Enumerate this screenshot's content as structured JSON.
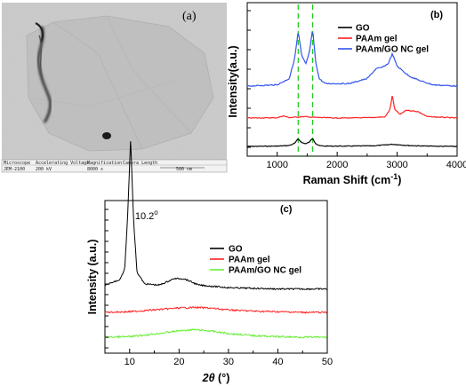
{
  "tem_panel": {
    "label": "(a)",
    "info_headers": [
      "Microscope",
      "Accelerating Voltage",
      "Magnification",
      "Camera Length"
    ],
    "info_values": [
      "JEM-2100",
      "200 kV",
      "8000 x",
      ""
    ],
    "scale_bar_label": "500 nm"
  },
  "chart_data": [
    {
      "type": "line",
      "panel_label": "(b)",
      "xlabel": "Raman Shift (cm",
      "xlabel_sup": "-1",
      "xlabel_close": ")",
      "ylabel": "Intensity(a.u.)",
      "xlim": [
        500,
        4000
      ],
      "xticks": [
        1000,
        2000,
        3000,
        4000
      ],
      "y_tick_labels": "none",
      "reference_lines_x": [
        1350,
        1590
      ],
      "reference_line_color": "#22cc22",
      "legend": "top-right",
      "series": [
        {
          "name": "GO",
          "color": "#000000",
          "x": [
            500,
            1000,
            1200,
            1290,
            1350,
            1410,
            1480,
            1540,
            1590,
            1640,
            1700,
            1800,
            2200,
            2600,
            2800,
            2920,
            3000,
            3200,
            3500,
            4000
          ],
          "y": [
            0.0,
            0.02,
            0.06,
            0.2,
            0.5,
            0.25,
            0.18,
            0.3,
            0.55,
            0.2,
            0.05,
            0.02,
            0.02,
            0.04,
            0.1,
            0.14,
            0.12,
            0.06,
            0.02,
            0.0
          ]
        },
        {
          "name": "PAAm gel",
          "color": "#ff2222",
          "x": [
            500,
            1000,
            1100,
            1200,
            1450,
            1600,
            2000,
            2500,
            2800,
            2880,
            2920,
            2960,
            3050,
            3150,
            3250,
            3350,
            3500,
            4000
          ],
          "y": [
            0.0,
            0.02,
            0.15,
            0.03,
            0.1,
            0.05,
            0.0,
            0.02,
            0.08,
            0.6,
            1.6,
            0.6,
            0.25,
            0.55,
            0.5,
            0.45,
            0.1,
            0.0
          ]
        },
        {
          "name": "PAAm/GO NC gel",
          "color": "#3355ee",
          "x": [
            500,
            1000,
            1200,
            1290,
            1350,
            1410,
            1480,
            1540,
            1590,
            1640,
            1700,
            1800,
            2200,
            2500,
            2650,
            2750,
            2850,
            2920,
            3000,
            3200,
            3400,
            3600,
            4000
          ],
          "y": [
            0.0,
            0.05,
            0.3,
            1.1,
            2.2,
            1.2,
            0.9,
            1.4,
            2.3,
            1.0,
            0.3,
            0.1,
            0.1,
            0.3,
            0.7,
            0.75,
            0.9,
            1.3,
            0.8,
            0.4,
            0.2,
            0.05,
            0.0
          ]
        }
      ]
    },
    {
      "type": "line",
      "panel_label": "(c)",
      "xlabel": "2θ",
      "xlabel_units": " (°)",
      "ylabel": "Intensity (a.u.)",
      "xlim": [
        5,
        50
      ],
      "xticks": [
        10,
        20,
        30,
        40,
        50
      ],
      "y_tick_labels": "none",
      "legend": "top-right",
      "peak_label": "10.2",
      "peak_label_sup": "o",
      "peak_x": 10.2,
      "series": [
        {
          "name": "GO",
          "color": "#000000",
          "x": [
            5,
            8,
            9,
            9.6,
            10.2,
            10.8,
            11.5,
            13,
            16,
            19,
            21,
            24,
            30,
            40,
            50
          ],
          "y": [
            0.3,
            0.5,
            0.9,
            3.0,
            6.0,
            2.8,
            0.8,
            0.35,
            0.3,
            0.55,
            0.55,
            0.3,
            0.2,
            0.15,
            0.15
          ]
        },
        {
          "name": "PAAm gel",
          "color": "#ff2222",
          "x": [
            5,
            10,
            15,
            20,
            23,
            26,
            30,
            35,
            40,
            45,
            50
          ],
          "y": [
            0.0,
            0.05,
            0.2,
            0.35,
            0.4,
            0.35,
            0.2,
            0.1,
            0.05,
            0.0,
            0.0
          ]
        },
        {
          "name": "PAAm/GO NC gel",
          "color": "#66ee33",
          "x": [
            5,
            10,
            15,
            20,
            23,
            26,
            30,
            35,
            40,
            45,
            50
          ],
          "y": [
            0.0,
            0.05,
            0.3,
            0.6,
            0.7,
            0.6,
            0.35,
            0.15,
            0.05,
            0.0,
            0.0
          ]
        }
      ]
    }
  ]
}
